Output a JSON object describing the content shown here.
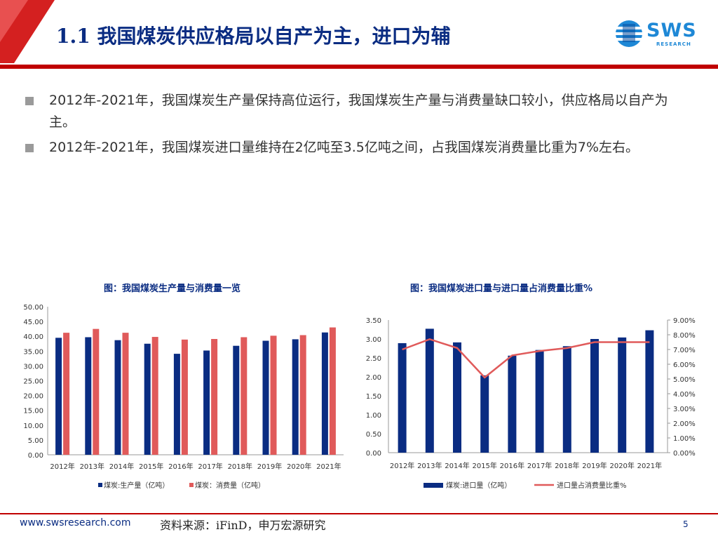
{
  "header": {
    "title": "1.1 我国煤炭供应格局以自产为主，进口为辅",
    "logo_text": "SWS",
    "logo_sub": "RESEARCH"
  },
  "bullets": [
    "2012年-2021年，我国煤炭生产量保持高位运行，我国煤炭生产量与消费量缺口较小，供应格局以自产为主。",
    "2012年-2021年，我国煤炭进口量维持在2亿吨至3.5亿吨之间，占我国煤炭消费量比重为7%左右。"
  ],
  "colors": {
    "navy": "#0a2c82",
    "red": "#e05a5a",
    "accent_red": "#c00000"
  },
  "chart_data": [
    {
      "type": "bar",
      "title": "图：我国煤炭生产量与消费量一览",
      "categories": [
        "2012年",
        "2013年",
        "2014年",
        "2015年",
        "2016年",
        "2017年",
        "2018年",
        "2019年",
        "2020年",
        "2021年"
      ],
      "series": [
        {
          "name": "煤炭:生产量（亿吨）",
          "values": [
            39.5,
            39.7,
            38.7,
            37.5,
            34.1,
            35.2,
            36.8,
            38.5,
            39.0,
            41.3
          ]
        },
        {
          "name": "煤炭：消费量（亿吨）",
          "values": [
            41.2,
            42.5,
            41.2,
            39.8,
            38.9,
            39.1,
            39.7,
            40.2,
            40.4,
            43.0
          ]
        }
      ],
      "y_ticks": [
        "0.00",
        "5.00",
        "10.00",
        "15.00",
        "20.00",
        "25.00",
        "30.00",
        "35.00",
        "40.00",
        "45.00",
        "50.00"
      ],
      "ylim": [
        0,
        50
      ]
    },
    {
      "type": "bar+line",
      "title": "图：我国煤炭进口量与进口量占消费量比重%",
      "categories": [
        "2012年",
        "2013年",
        "2014年",
        "2015年",
        "2016年",
        "2017年",
        "2018年",
        "2019年",
        "2020年",
        "2021年"
      ],
      "series": [
        {
          "name": "煤炭:进口量（亿吨）",
          "type": "bar",
          "values": [
            2.89,
            3.27,
            2.91,
            2.04,
            2.56,
            2.71,
            2.81,
            3.0,
            3.04,
            3.23
          ]
        },
        {
          "name": "进口量占消费量比重%",
          "type": "line",
          "values": [
            7.0,
            7.7,
            7.1,
            5.1,
            6.6,
            6.9,
            7.1,
            7.5,
            7.5,
            7.5
          ]
        }
      ],
      "y_ticks": [
        "0.00",
        "0.50",
        "1.00",
        "1.50",
        "2.00",
        "2.50",
        "3.00",
        "3.50"
      ],
      "y2_ticks": [
        "0.00%",
        "1.00%",
        "2.00%",
        "3.00%",
        "4.00%",
        "5.00%",
        "6.00%",
        "7.00%",
        "8.00%",
        "9.00%"
      ],
      "ylim": [
        0,
        3.5
      ],
      "y2lim": [
        0,
        9
      ]
    }
  ],
  "footer": {
    "url": "www.swsresearch.com",
    "source": "资料来源：iFinD，申万宏源研究",
    "page": "5"
  }
}
